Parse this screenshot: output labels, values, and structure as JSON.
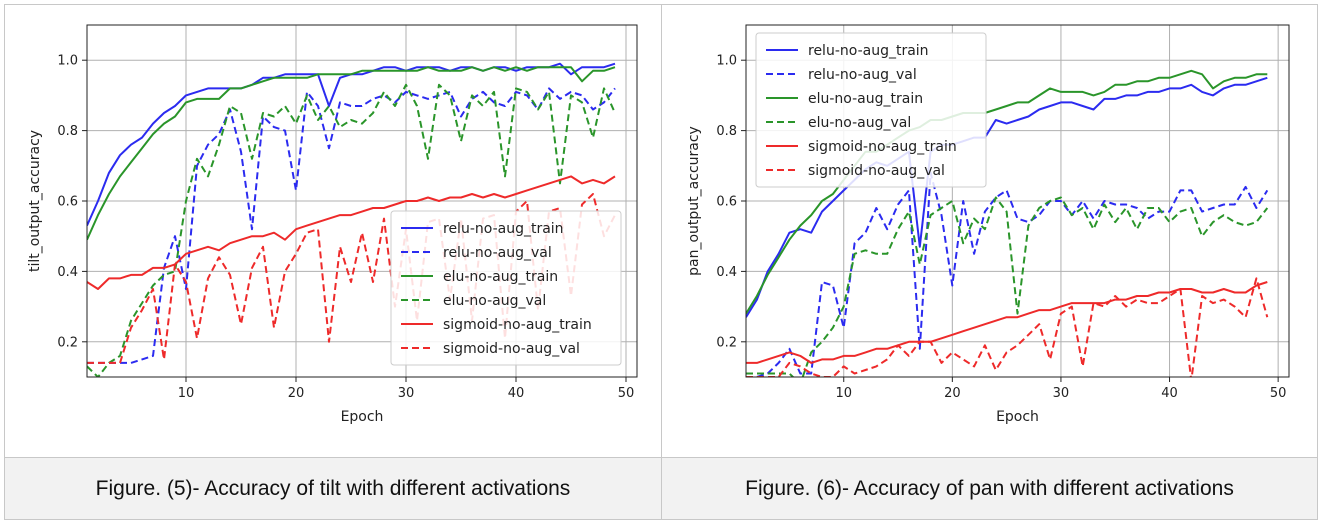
{
  "captions": {
    "left": "Figure. (5)- Accuracy of tilt with different activations",
    "right": "Figure. (6)- Accuracy of pan with different activations"
  },
  "chart_data": [
    {
      "type": "line",
      "xlabel": "Epoch",
      "ylabel": "tilt_output_accuracy",
      "xlim": [
        1,
        51
      ],
      "ylim": [
        0.1,
        1.1
      ],
      "xticks": [
        10,
        20,
        30,
        40,
        50
      ],
      "yticks": [
        0.2,
        0.4,
        0.6,
        0.8,
        1.0
      ],
      "ytick_labels": [
        "0.2",
        "0.4",
        "0.6",
        "0.8",
        "1.0"
      ],
      "grid": true,
      "legend_position": "lower-right",
      "x": [
        1,
        2,
        3,
        4,
        5,
        6,
        7,
        8,
        9,
        10,
        11,
        12,
        13,
        14,
        15,
        16,
        17,
        18,
        19,
        20,
        21,
        22,
        23,
        24,
        25,
        26,
        27,
        28,
        29,
        30,
        31,
        32,
        33,
        34,
        35,
        36,
        37,
        38,
        39,
        40,
        41,
        42,
        43,
        44,
        45,
        46,
        47,
        48,
        49
      ],
      "series": [
        {
          "name": "relu-no-aug_train",
          "color": "#2b2bf0",
          "dash": "solid",
          "values": [
            0.53,
            0.6,
            0.68,
            0.73,
            0.76,
            0.78,
            0.82,
            0.85,
            0.87,
            0.9,
            0.91,
            0.92,
            0.92,
            0.92,
            0.92,
            0.93,
            0.95,
            0.95,
            0.96,
            0.96,
            0.96,
            0.96,
            0.87,
            0.95,
            0.96,
            0.96,
            0.97,
            0.98,
            0.98,
            0.97,
            0.98,
            0.98,
            0.98,
            0.97,
            0.98,
            0.98,
            0.97,
            0.98,
            0.98,
            0.97,
            0.98,
            0.98,
            0.98,
            0.99,
            0.96,
            0.98,
            0.98,
            0.98,
            0.99
          ]
        },
        {
          "name": "relu-no-aug_val",
          "color": "#2b2bf0",
          "dash": "dashed",
          "values": [
            0.14,
            0.14,
            0.14,
            0.14,
            0.14,
            0.15,
            0.16,
            0.41,
            0.5,
            0.35,
            0.7,
            0.76,
            0.79,
            0.86,
            0.74,
            0.52,
            0.84,
            0.81,
            0.8,
            0.63,
            0.91,
            0.87,
            0.75,
            0.88,
            0.87,
            0.87,
            0.89,
            0.9,
            0.88,
            0.91,
            0.9,
            0.89,
            0.9,
            0.91,
            0.84,
            0.89,
            0.91,
            0.88,
            0.87,
            0.91,
            0.9,
            0.86,
            0.92,
            0.89,
            0.91,
            0.9,
            0.86,
            0.88,
            0.92
          ]
        },
        {
          "name": "elu-no-aug_train",
          "color": "#2a952a",
          "dash": "solid",
          "values": [
            0.49,
            0.56,
            0.62,
            0.67,
            0.71,
            0.75,
            0.79,
            0.82,
            0.84,
            0.88,
            0.89,
            0.89,
            0.89,
            0.92,
            0.92,
            0.93,
            0.94,
            0.95,
            0.95,
            0.95,
            0.95,
            0.96,
            0.96,
            0.96,
            0.96,
            0.97,
            0.97,
            0.97,
            0.97,
            0.97,
            0.97,
            0.98,
            0.97,
            0.97,
            0.97,
            0.98,
            0.97,
            0.98,
            0.97,
            0.98,
            0.97,
            0.98,
            0.98,
            0.98,
            0.98,
            0.94,
            0.97,
            0.97,
            0.98
          ]
        },
        {
          "name": "elu-no-aug_val",
          "color": "#2a952a",
          "dash": "dashed",
          "values": [
            0.13,
            0.1,
            0.14,
            0.16,
            0.26,
            0.31,
            0.36,
            0.39,
            0.4,
            0.6,
            0.72,
            0.67,
            0.76,
            0.87,
            0.85,
            0.72,
            0.85,
            0.84,
            0.87,
            0.82,
            0.9,
            0.83,
            0.87,
            0.81,
            0.83,
            0.82,
            0.85,
            0.91,
            0.87,
            0.93,
            0.87,
            0.72,
            0.93,
            0.9,
            0.77,
            0.9,
            0.87,
            0.91,
            0.67,
            0.92,
            0.91,
            0.86,
            0.91,
            0.65,
            0.9,
            0.88,
            0.78,
            0.92,
            0.85
          ]
        },
        {
          "name": "sigmoid-no-aug_train",
          "color": "#ee2a2a",
          "dash": "solid",
          "values": [
            0.37,
            0.35,
            0.38,
            0.38,
            0.39,
            0.39,
            0.41,
            0.41,
            0.42,
            0.45,
            0.46,
            0.47,
            0.46,
            0.48,
            0.49,
            0.5,
            0.5,
            0.51,
            0.49,
            0.52,
            0.53,
            0.54,
            0.55,
            0.56,
            0.56,
            0.57,
            0.58,
            0.58,
            0.59,
            0.6,
            0.6,
            0.61,
            0.6,
            0.61,
            0.61,
            0.62,
            0.61,
            0.62,
            0.61,
            0.62,
            0.63,
            0.64,
            0.65,
            0.66,
            0.67,
            0.65,
            0.66,
            0.65,
            0.67
          ]
        },
        {
          "name": "sigmoid-no-aug_val",
          "color": "#ee2a2a",
          "dash": "dashed",
          "values": [
            0.14,
            0.14,
            0.14,
            0.14,
            0.24,
            0.29,
            0.35,
            0.15,
            0.42,
            0.37,
            0.21,
            0.38,
            0.44,
            0.39,
            0.25,
            0.41,
            0.47,
            0.24,
            0.4,
            0.45,
            0.51,
            0.52,
            0.2,
            0.47,
            0.37,
            0.51,
            0.37,
            0.55,
            0.3,
            0.52,
            0.26,
            0.54,
            0.55,
            0.32,
            0.55,
            0.26,
            0.55,
            0.56,
            0.21,
            0.57,
            0.6,
            0.29,
            0.57,
            0.58,
            0.33,
            0.59,
            0.62,
            0.5,
            0.56
          ]
        }
      ]
    },
    {
      "type": "line",
      "xlabel": "Epoch",
      "ylabel": "pan_output_accuracy",
      "xlim": [
        1,
        51
      ],
      "ylim": [
        0.1,
        1.1
      ],
      "xticks": [
        10,
        20,
        30,
        40,
        50
      ],
      "yticks": [
        0.2,
        0.4,
        0.6,
        0.8,
        1.0
      ],
      "ytick_labels": [
        "0.2",
        "0.4",
        "0.6",
        "0.8",
        "1.0"
      ],
      "grid": true,
      "legend_position": "upper-left",
      "x": [
        1,
        2,
        3,
        4,
        5,
        6,
        7,
        8,
        9,
        10,
        11,
        12,
        13,
        14,
        15,
        16,
        17,
        18,
        19,
        20,
        21,
        22,
        23,
        24,
        25,
        26,
        27,
        28,
        29,
        30,
        31,
        32,
        33,
        34,
        35,
        36,
        37,
        38,
        39,
        40,
        41,
        42,
        43,
        44,
        45,
        46,
        47,
        48,
        49
      ],
      "series": [
        {
          "name": "relu-no-aug_train",
          "color": "#2b2bf0",
          "dash": "solid",
          "values": [
            0.27,
            0.32,
            0.4,
            0.45,
            0.51,
            0.52,
            0.51,
            0.57,
            0.6,
            0.63,
            0.66,
            0.69,
            0.71,
            0.7,
            0.72,
            0.74,
            0.47,
            0.74,
            0.76,
            0.76,
            0.77,
            0.78,
            0.78,
            0.83,
            0.82,
            0.83,
            0.84,
            0.86,
            0.87,
            0.88,
            0.88,
            0.87,
            0.86,
            0.89,
            0.89,
            0.9,
            0.9,
            0.91,
            0.91,
            0.92,
            0.92,
            0.93,
            0.91,
            0.9,
            0.92,
            0.93,
            0.93,
            0.94,
            0.95
          ]
        },
        {
          "name": "relu-no-aug_val",
          "color": "#2b2bf0",
          "dash": "dashed",
          "values": [
            0.1,
            0.1,
            0.11,
            0.14,
            0.18,
            0.11,
            0.11,
            0.37,
            0.36,
            0.24,
            0.48,
            0.51,
            0.58,
            0.52,
            0.59,
            0.63,
            0.18,
            0.68,
            0.56,
            0.36,
            0.6,
            0.45,
            0.57,
            0.61,
            0.63,
            0.55,
            0.54,
            0.56,
            0.6,
            0.6,
            0.56,
            0.6,
            0.55,
            0.6,
            0.59,
            0.59,
            0.58,
            0.55,
            0.57,
            0.57,
            0.63,
            0.63,
            0.57,
            0.58,
            0.59,
            0.59,
            0.64,
            0.58,
            0.63
          ]
        },
        {
          "name": "elu-no-aug_train",
          "color": "#2a952a",
          "dash": "solid",
          "values": [
            0.28,
            0.33,
            0.39,
            0.44,
            0.49,
            0.53,
            0.56,
            0.6,
            0.62,
            0.66,
            0.7,
            0.74,
            0.74,
            0.76,
            0.78,
            0.8,
            0.81,
            0.83,
            0.83,
            0.84,
            0.85,
            0.85,
            0.85,
            0.86,
            0.87,
            0.88,
            0.88,
            0.9,
            0.92,
            0.91,
            0.91,
            0.91,
            0.9,
            0.91,
            0.93,
            0.93,
            0.94,
            0.94,
            0.95,
            0.95,
            0.96,
            0.97,
            0.96,
            0.92,
            0.94,
            0.95,
            0.95,
            0.96,
            0.96
          ]
        },
        {
          "name": "elu-no-aug_val",
          "color": "#2a952a",
          "dash": "dashed",
          "values": [
            0.11,
            0.11,
            0.11,
            0.11,
            0.11,
            0.08,
            0.17,
            0.2,
            0.24,
            0.3,
            0.45,
            0.46,
            0.45,
            0.45,
            0.52,
            0.57,
            0.42,
            0.56,
            0.58,
            0.6,
            0.48,
            0.55,
            0.52,
            0.61,
            0.57,
            0.28,
            0.53,
            0.58,
            0.6,
            0.61,
            0.56,
            0.58,
            0.52,
            0.59,
            0.54,
            0.58,
            0.52,
            0.58,
            0.58,
            0.54,
            0.57,
            0.58,
            0.5,
            0.54,
            0.56,
            0.54,
            0.53,
            0.54,
            0.58
          ]
        },
        {
          "name": "sigmoid-no-aug_train",
          "color": "#ee2a2a",
          "dash": "solid",
          "values": [
            0.14,
            0.14,
            0.15,
            0.16,
            0.17,
            0.16,
            0.14,
            0.15,
            0.15,
            0.16,
            0.16,
            0.17,
            0.18,
            0.18,
            0.19,
            0.2,
            0.2,
            0.2,
            0.21,
            0.22,
            0.23,
            0.24,
            0.25,
            0.26,
            0.27,
            0.27,
            0.28,
            0.29,
            0.29,
            0.3,
            0.31,
            0.31,
            0.31,
            0.31,
            0.32,
            0.32,
            0.33,
            0.33,
            0.34,
            0.34,
            0.35,
            0.35,
            0.34,
            0.34,
            0.35,
            0.34,
            0.34,
            0.36,
            0.37
          ]
        },
        {
          "name": "sigmoid-no-aug_val",
          "color": "#ee2a2a",
          "dash": "dashed",
          "values": [
            0.1,
            0.1,
            0.1,
            0.1,
            0.14,
            0.13,
            0.11,
            0.1,
            0.1,
            0.13,
            0.11,
            0.12,
            0.13,
            0.15,
            0.19,
            0.16,
            0.2,
            0.2,
            0.14,
            0.17,
            0.15,
            0.13,
            0.19,
            0.12,
            0.17,
            0.19,
            0.22,
            0.25,
            0.15,
            0.28,
            0.3,
            0.13,
            0.31,
            0.3,
            0.33,
            0.3,
            0.32,
            0.31,
            0.31,
            0.33,
            0.35,
            0.09,
            0.33,
            0.31,
            0.32,
            0.3,
            0.27,
            0.38,
            0.27
          ]
        }
      ]
    }
  ]
}
